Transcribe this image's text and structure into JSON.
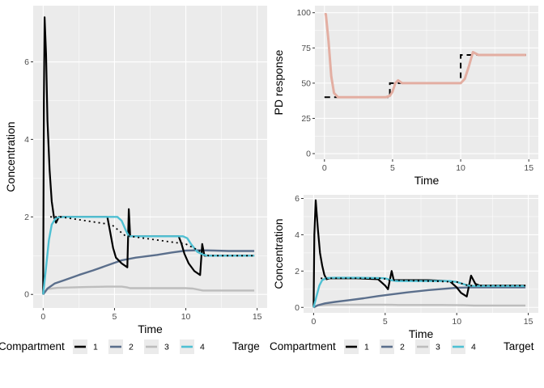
{
  "colors": {
    "compartment_1": "#000000",
    "compartment_2": "#5b6f8c",
    "compartment_3": "#bdbdbd",
    "compartment_4": "#4fc0d3",
    "pd_response": "#e3aea2",
    "target": "#000000",
    "panel_background": "#ebebeb",
    "grid": "#ffffff"
  },
  "chart_data": [
    {
      "id": "left",
      "type": "line",
      "xlabel": "Time",
      "ylabel": "Concentration",
      "xlim": [
        -0.7,
        15.7
      ],
      "ylim": [
        -0.35,
        7.45
      ],
      "xticks": [
        0,
        5,
        10,
        15
      ],
      "yticks": [
        0,
        2,
        4,
        6
      ],
      "grid": true,
      "series": [
        {
          "name": "1",
          "x": [
            0,
            0.05,
            0.1,
            0.2,
            0.3,
            0.45,
            0.6,
            0.75,
            0.9,
            1.1,
            2,
            3,
            4.5,
            4.7,
            4.9,
            5.1,
            5.5,
            5.9,
            6.0,
            6.1,
            6.3,
            6.6,
            7,
            8,
            9.5,
            9.7,
            9.9,
            10.2,
            10.6,
            11.0,
            11.15,
            11.3,
            11.6,
            12,
            13,
            14.8
          ],
          "y": [
            0,
            5,
            7.15,
            6.2,
            4.5,
            3.2,
            2.4,
            2.0,
            1.85,
            2.0,
            2.0,
            2.0,
            2.0,
            1.6,
            1.2,
            0.95,
            0.8,
            0.7,
            2.2,
            1.5,
            1.5,
            1.5,
            1.5,
            1.5,
            1.5,
            1.3,
            1.05,
            0.8,
            0.6,
            0.5,
            1.3,
            1.0,
            1.0,
            1.0,
            1.0,
            1.0
          ]
        },
        {
          "name": "2",
          "x": [
            0,
            0.3,
            0.8,
            1.5,
            2.5,
            3.5,
            4.5,
            5.5,
            6.5,
            8,
            9,
            10,
            11,
            12,
            13,
            14,
            14.8
          ],
          "y": [
            0,
            0.15,
            0.28,
            0.37,
            0.5,
            0.62,
            0.75,
            0.88,
            0.95,
            1.02,
            1.08,
            1.13,
            1.14,
            1.13,
            1.12,
            1.12,
            1.12
          ]
        },
        {
          "name": "3",
          "x": [
            0,
            0.3,
            1,
            2,
            3,
            4.5,
            5.5,
            5.9,
            6.1,
            7,
            8,
            9,
            10,
            10.5,
            11.2,
            12,
            13,
            14,
            14.8
          ],
          "y": [
            0,
            0.14,
            0.17,
            0.18,
            0.19,
            0.2,
            0.2,
            0.18,
            0.16,
            0.16,
            0.16,
            0.16,
            0.16,
            0.15,
            0.1,
            0.1,
            0.1,
            0.1,
            0.1
          ]
        },
        {
          "name": "4",
          "x": [
            0,
            0.2,
            0.4,
            0.6,
            0.9,
            1.5,
            3,
            4.5,
            5.2,
            5.5,
            5.8,
            6.0,
            6.2,
            7,
            8,
            9,
            9.8,
            10.1,
            10.4,
            10.8,
            11.2,
            11.5,
            12,
            13,
            14,
            14.8
          ],
          "y": [
            0,
            0.7,
            1.4,
            1.8,
            1.98,
            2.0,
            2.0,
            2.0,
            2.0,
            1.9,
            1.65,
            1.5,
            1.5,
            1.5,
            1.5,
            1.5,
            1.5,
            1.45,
            1.28,
            1.1,
            1.03,
            1.0,
            1.0,
            1.0,
            1.0,
            1.0
          ]
        }
      ],
      "target": {
        "x": [
          0.5,
          1.2,
          4.8,
          5.8,
          6.1,
          10.0,
          11.6,
          14.8
        ],
        "y": [
          2.0,
          2.0,
          1.8,
          1.5,
          1.5,
          1.3,
          1.0,
          1.0
        ]
      }
    },
    {
      "id": "top-right",
      "type": "line",
      "xlabel": "Time",
      "ylabel": "PD response",
      "xlim": [
        -0.7,
        15.7
      ],
      "ylim": [
        -4,
        105
      ],
      "xticks": [
        0,
        5,
        10,
        15
      ],
      "yticks": [
        0,
        25,
        50,
        75,
        100
      ],
      "grid": true,
      "series": [
        {
          "name": "PD response",
          "x": [
            0,
            0.1,
            0.3,
            0.5,
            0.7,
            1.0,
            2,
            3,
            4.5,
            4.8,
            5.0,
            5.2,
            5.4,
            5.7,
            6.2,
            7,
            8,
            9,
            10,
            10.3,
            10.6,
            10.9,
            11.3,
            11.8,
            13,
            14.8
          ],
          "y": [
            99,
            99,
            80,
            55,
            43,
            40,
            40,
            40,
            40,
            41,
            44,
            50,
            52,
            50,
            50,
            50,
            50,
            50,
            50,
            53,
            62,
            72,
            70,
            70,
            70,
            70
          ]
        }
      ],
      "target": {
        "x": [
          0,
          1.5,
          4.8,
          4.8,
          6,
          10,
          10,
          14.8
        ],
        "y": [
          40,
          40,
          40,
          50,
          50,
          50,
          70,
          70
        ]
      }
    },
    {
      "id": "bottom-right",
      "type": "line",
      "xlabel": "Time",
      "ylabel": "Concentration",
      "xlim": [
        -0.7,
        15.7
      ],
      "ylim": [
        -0.3,
        6.2
      ],
      "xticks": [
        0,
        5,
        10,
        15
      ],
      "yticks": [
        0,
        2,
        4,
        6
      ],
      "grid": true,
      "series": [
        {
          "name": "1",
          "x": [
            0,
            0.05,
            0.15,
            0.3,
            0.45,
            0.6,
            0.75,
            0.9,
            1.1,
            2,
            3,
            4.5,
            5.0,
            5.2,
            5.45,
            5.6,
            5.8,
            6.2,
            7,
            8,
            9.5,
            10.0,
            10.3,
            10.7,
            11.0,
            11.3,
            11.6,
            12,
            13,
            14.8
          ],
          "y": [
            0,
            4,
            5.9,
            4.3,
            3.0,
            2.3,
            1.8,
            1.55,
            1.6,
            1.6,
            1.6,
            1.55,
            1.2,
            1.0,
            2.0,
            1.5,
            1.5,
            1.5,
            1.5,
            1.5,
            1.45,
            1.1,
            0.8,
            0.6,
            1.75,
            1.3,
            1.2,
            1.2,
            1.2,
            1.2
          ]
        },
        {
          "name": "2",
          "x": [
            0,
            0.3,
            0.8,
            1.5,
            2.5,
            3.5,
            4.5,
            5.5,
            6.5,
            8,
            9,
            10,
            11,
            12,
            13,
            14.8
          ],
          "y": [
            0,
            0.12,
            0.22,
            0.3,
            0.4,
            0.5,
            0.62,
            0.72,
            0.82,
            0.95,
            1.02,
            1.08,
            1.1,
            1.1,
            1.1,
            1.1
          ]
        },
        {
          "name": "3",
          "x": [
            0,
            0.3,
            1,
            2,
            3,
            4.5,
            5.5,
            6,
            7,
            9,
            10.5,
            11.2,
            12,
            13,
            14.8
          ],
          "y": [
            0,
            0.11,
            0.14,
            0.15,
            0.15,
            0.15,
            0.14,
            0.13,
            0.13,
            0.13,
            0.12,
            0.1,
            0.1,
            0.1,
            0.1
          ]
        },
        {
          "name": "4",
          "x": [
            0,
            0.2,
            0.4,
            0.6,
            0.9,
            1.5,
            3,
            4.5,
            5.0,
            5.4,
            5.8,
            6.2,
            7,
            8,
            9.5,
            10.0,
            10.4,
            10.8,
            11.2,
            11.6,
            12,
            13,
            14.8
          ],
          "y": [
            0,
            0.6,
            1.2,
            1.5,
            1.62,
            1.63,
            1.63,
            1.62,
            1.6,
            1.5,
            1.45,
            1.45,
            1.45,
            1.45,
            1.45,
            1.4,
            1.3,
            1.2,
            1.18,
            1.18,
            1.18,
            1.18,
            1.18
          ]
        }
      ],
      "target": {
        "x": [
          0.5,
          1.5,
          4.8,
          5.3,
          5.8,
          10.0,
          10.8,
          14.8
        ],
        "y": [
          1.6,
          1.6,
          1.6,
          1.5,
          1.5,
          1.4,
          1.2,
          1.2
        ]
      }
    }
  ],
  "legends": [
    {
      "title": "Compartment",
      "entries": [
        {
          "key": "compartment_1",
          "label": "1"
        },
        {
          "key": "compartment_2",
          "label": "2"
        },
        {
          "key": "compartment_3",
          "label": "3"
        },
        {
          "key": "compartment_4",
          "label": "4"
        }
      ],
      "trailing_title": "Targe"
    },
    {
      "title": "Compartment",
      "entries": [
        {
          "key": "compartment_1",
          "label": "1"
        },
        {
          "key": "compartment_2",
          "label": "2"
        },
        {
          "key": "compartment_3",
          "label": "3"
        },
        {
          "key": "compartment_4",
          "label": "4"
        }
      ],
      "trailing_title": "Target"
    }
  ]
}
